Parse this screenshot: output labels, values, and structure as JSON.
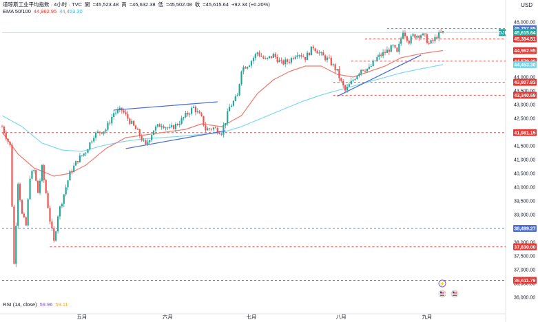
{
  "header": {
    "symbol_title": "道琼斯工业平均指数 · 4小时 · TVC",
    "open_label": "開",
    "open_value": "=45,523.48",
    "high_label": "高",
    "high_value": "=45,632.38",
    "low_label": "低",
    "low_value": "=45,502.08",
    "close_label": "收",
    "close_value": "=45,615.64",
    "change": "+92.34 (+0.20%)",
    "ema_label": "EMA 50/100",
    "ema50_value": "44,962.95",
    "ema100_value": "44,453.30",
    "currency": "USD"
  },
  "rsi": {
    "label": "RSI (14, close)",
    "value1": "59.96",
    "value2": "59.11"
  },
  "colors": {
    "up": "#26a69a",
    "down": "#ef5350",
    "ema50": "#ef7a6e",
    "ema100": "#7fd8ee",
    "trend": "#4f6fd6",
    "blue_level": "#4f6fd6",
    "red_level": "#e53935",
    "dark_tag": "#131722"
  },
  "chart_data": {
    "type": "line",
    "title": "",
    "xlabel": "",
    "ylabel": "",
    "y_range": [
      35850,
      46050
    ],
    "y_ticks": [
      {
        "v": 46000,
        "t": "46,000.00"
      },
      {
        "v": 45500,
        "t": "45,500.00"
      },
      {
        "v": 45000,
        "t": "45,000.00"
      },
      {
        "v": 44500,
        "t": "44,500.00"
      },
      {
        "v": 44000,
        "t": "44,000.00"
      },
      {
        "v": 43500,
        "t": "43,500.00"
      },
      {
        "v": 43000,
        "t": "43,000.00"
      },
      {
        "v": 42500,
        "t": "42,500.00"
      },
      {
        "v": 42000,
        "t": "42,000.00"
      },
      {
        "v": 41500,
        "t": "41,500.00"
      },
      {
        "v": 41000,
        "t": "41,000.00"
      },
      {
        "v": 40500,
        "t": "40,500.00"
      },
      {
        "v": 40000,
        "t": "40,000.00"
      },
      {
        "v": 39500,
        "t": "39,500.00"
      },
      {
        "v": 39000,
        "t": "39,000.00"
      },
      {
        "v": 38500,
        "t": "38,500.00"
      },
      {
        "v": 38000,
        "t": "38,000.00"
      },
      {
        "v": 37500,
        "t": "37,500.00"
      },
      {
        "v": 37000,
        "t": "37,000.00"
      },
      {
        "v": 36500,
        "t": "36,500.00"
      },
      {
        "v": 36000,
        "t": "36,000.00"
      }
    ],
    "x_labels": [
      {
        "t": "五月",
        "i": 40
      },
      {
        "t": "六月",
        "i": 83
      },
      {
        "t": "七月",
        "i": 125
      },
      {
        "t": "八月",
        "i": 170
      },
      {
        "t": "九月",
        "i": 213
      }
    ],
    "candle_count": 222,
    "price_path": [
      [
        0,
        42200
      ],
      [
        4,
        41500
      ],
      [
        6,
        37200
      ],
      [
        8,
        40200
      ],
      [
        10,
        39000
      ],
      [
        12,
        38600
      ],
      [
        14,
        40400
      ],
      [
        16,
        40600
      ],
      [
        18,
        39800
      ],
      [
        20,
        40700
      ],
      [
        22,
        39800
      ],
      [
        24,
        38800
      ],
      [
        26,
        38000
      ],
      [
        28,
        39000
      ],
      [
        30,
        39500
      ],
      [
        32,
        40000
      ],
      [
        34,
        40500
      ],
      [
        38,
        41000
      ],
      [
        42,
        41300
      ],
      [
        46,
        41900
      ],
      [
        52,
        42100
      ],
      [
        56,
        42700
      ],
      [
        60,
        42800
      ],
      [
        64,
        42400
      ],
      [
        68,
        42000
      ],
      [
        72,
        41500
      ],
      [
        76,
        42100
      ],
      [
        80,
        42300
      ],
      [
        84,
        42100
      ],
      [
        88,
        42300
      ],
      [
        92,
        42600
      ],
      [
        96,
        42900
      ],
      [
        100,
        42500
      ],
      [
        102,
        42100
      ],
      [
        106,
        42150
      ],
      [
        110,
        42000
      ],
      [
        112,
        42400
      ],
      [
        114,
        42900
      ],
      [
        118,
        43300
      ],
      [
        120,
        44300
      ],
      [
        124,
        44500
      ],
      [
        128,
        44900
      ],
      [
        132,
        44600
      ],
      [
        136,
        44800
      ],
      [
        140,
        44500
      ],
      [
        144,
        44600
      ],
      [
        148,
        44900
      ],
      [
        152,
        44700
      ],
      [
        156,
        45100
      ],
      [
        160,
        44800
      ],
      [
        164,
        44600
      ],
      [
        168,
        44200
      ],
      [
        170,
        43800
      ],
      [
        172,
        43500
      ],
      [
        176,
        43900
      ],
      [
        180,
        44300
      ],
      [
        184,
        44300
      ],
      [
        188,
        44700
      ],
      [
        192,
        44900
      ],
      [
        196,
        45100
      ],
      [
        198,
        44850
      ],
      [
        201,
        45700
      ],
      [
        204,
        45300
      ],
      [
        206,
        45500
      ],
      [
        210,
        45550
      ],
      [
        212,
        45450
      ],
      [
        214,
        45200
      ],
      [
        216,
        45300
      ],
      [
        218,
        45500
      ],
      [
        221,
        45616
      ]
    ],
    "ema50_path": [
      [
        0,
        42000
      ],
      [
        8,
        41200
      ],
      [
        16,
        40700
      ],
      [
        26,
        40400
      ],
      [
        34,
        40500
      ],
      [
        42,
        40800
      ],
      [
        52,
        41400
      ],
      [
        62,
        41800
      ],
      [
        72,
        41900
      ],
      [
        82,
        42000
      ],
      [
        92,
        42100
      ],
      [
        100,
        42300
      ],
      [
        110,
        42200
      ],
      [
        120,
        42600
      ],
      [
        128,
        43400
      ],
      [
        136,
        43900
      ],
      [
        144,
        44200
      ],
      [
        152,
        44400
      ],
      [
        160,
        44400
      ],
      [
        168,
        44100
      ],
      [
        176,
        44000
      ],
      [
        184,
        44200
      ],
      [
        192,
        44400
      ],
      [
        200,
        44700
      ],
      [
        210,
        44850
      ],
      [
        221,
        44963
      ]
    ],
    "ema100_path": [
      [
        0,
        42600
      ],
      [
        10,
        42200
      ],
      [
        20,
        41600
      ],
      [
        30,
        41350
      ],
      [
        40,
        41300
      ],
      [
        50,
        41500
      ],
      [
        60,
        41650
      ],
      [
        70,
        41750
      ],
      [
        80,
        41800
      ],
      [
        90,
        41850
      ],
      [
        100,
        41920
      ],
      [
        110,
        41980
      ],
      [
        120,
        42200
      ],
      [
        130,
        42500
      ],
      [
        140,
        42800
      ],
      [
        150,
        43100
      ],
      [
        160,
        43350
      ],
      [
        170,
        43550
      ],
      [
        180,
        43750
      ],
      [
        190,
        43950
      ],
      [
        200,
        44150
      ],
      [
        210,
        44300
      ],
      [
        221,
        44453
      ]
    ],
    "trendlines": [
      {
        "from": [
          56,
          42800
        ],
        "to": [
          108,
          43100
        ]
      },
      {
        "from": [
          62,
          41400
        ],
        "to": [
          112,
          42050
        ]
      },
      {
        "from": [
          168,
          43300
        ],
        "to": [
          210,
          44800
        ]
      }
    ],
    "dashed_levels": [
      {
        "value": 45757.85,
        "label": "45,757.85",
        "color": "blue",
        "from": 193
      },
      {
        "value": 45615.64,
        "label": "45,615.64",
        "color": "solid-light",
        "from": 0
      },
      {
        "value": 45384.51,
        "label": "45,384.51",
        "color": "red",
        "from": 182
      },
      {
        "value": 44579.2,
        "label": "44,579.20",
        "color": "red",
        "from": 175
      },
      {
        "value": 43807.83,
        "label": "43,807.83",
        "color": "red",
        "from": 166
      },
      {
        "value": 43340.69,
        "label": "43,340.69",
        "color": "red",
        "from": 166
      },
      {
        "value": 41981.15,
        "label": "41,981.15",
        "color": "red",
        "from": 0
      },
      {
        "value": 38499.27,
        "label": "38,499.27",
        "color": "blue",
        "from": 0
      },
      {
        "value": 37830.0,
        "label": "37,830.00",
        "color": "red",
        "from": 24
      },
      {
        "value": 36611.79,
        "label": "36,611.79",
        "color": "red",
        "from": 0
      }
    ],
    "price_tags": [
      {
        "value": 45757.85,
        "label": "45,757.85",
        "style": "blue"
      },
      {
        "value": 45615.64,
        "label": "45,615.64",
        "style": "green"
      },
      {
        "value": 45384.51,
        "label": "45,384.51",
        "style": "red"
      },
      {
        "value": 44962.95,
        "label": "44,962.95",
        "style": "red"
      },
      {
        "value": 44579.2,
        "label": "44,579.20",
        "style": "red"
      },
      {
        "value": 44453.3,
        "label": "44,453.30",
        "style": "cyan"
      },
      {
        "value": 43807.83,
        "label": "43,807.83",
        "style": "red"
      },
      {
        "value": 43340.69,
        "label": "43,340.69",
        "style": "red"
      },
      {
        "value": 41981.15,
        "label": "41,981.15",
        "style": "red"
      },
      {
        "value": 38499.27,
        "label": "38,499.27",
        "style": "blue"
      },
      {
        "value": 37830.0,
        "label": "37,830.00",
        "style": "red"
      },
      {
        "value": 36611.79,
        "label": "36,611.79",
        "style": "red"
      }
    ],
    "symbol_badge": "DJI"
  }
}
